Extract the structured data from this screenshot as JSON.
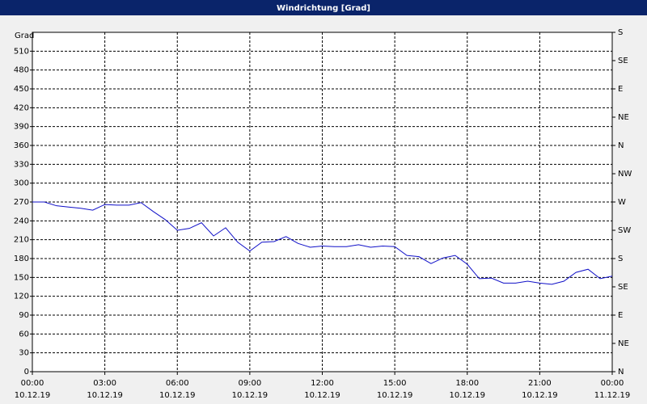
{
  "chart_data": {
    "type": "line",
    "title": "Windrichtung [Grad]",
    "ylabel": "Grad",
    "x": [
      0,
      0.5,
      1,
      1.5,
      2,
      2.5,
      3,
      3.5,
      4,
      4.5,
      5,
      5.5,
      6,
      6.5,
      7,
      7.5,
      8,
      8.5,
      9,
      9.5,
      10,
      10.5,
      11,
      11.5,
      12,
      12.5,
      13,
      13.5,
      14,
      14.5,
      15,
      15.5,
      16,
      16.5,
      17,
      17.5,
      18,
      18.5,
      19,
      19.5,
      20,
      20.5,
      21,
      21.5,
      22,
      22.5,
      23,
      23.5,
      24
    ],
    "series": [
      {
        "color": "#1010c8",
        "values": [
          270,
          270,
          264,
          262,
          260,
          257,
          266,
          265,
          265,
          269,
          255,
          242,
          225,
          228,
          237,
          216,
          229,
          206,
          192,
          206,
          207,
          215,
          204,
          198,
          200,
          199,
          199,
          202,
          198,
          200,
          199,
          185,
          183,
          172,
          181,
          185,
          171,
          148,
          149,
          141,
          141,
          144,
          141,
          139,
          144,
          158,
          163,
          148,
          152
        ]
      }
    ],
    "xlim": [
      0,
      24
    ],
    "xticks": [
      {
        "value": 0,
        "label": "00:00"
      },
      {
        "value": 3,
        "label": "03:00"
      },
      {
        "value": 6,
        "label": "06:00"
      },
      {
        "value": 9,
        "label": "09:00"
      },
      {
        "value": 12,
        "label": "12:00"
      },
      {
        "value": 15,
        "label": "15:00"
      },
      {
        "value": 18,
        "label": "18:00"
      },
      {
        "value": 21,
        "label": "21:00"
      },
      {
        "value": 24,
        "label": "00:00"
      }
    ],
    "xtick_dates": [
      "10.12.19",
      "10.12.19",
      "10.12.19",
      "10.12.19",
      "10.12.19",
      "10.12.19",
      "10.12.19",
      "10.12.19",
      "11.12.19"
    ],
    "ylim": [
      0,
      540
    ],
    "yticks": [
      0,
      30,
      60,
      90,
      120,
      150,
      180,
      210,
      240,
      270,
      300,
      330,
      360,
      390,
      420,
      450,
      480,
      510
    ],
    "y2lim": [
      0,
      540
    ],
    "y2ticks": [
      {
        "value": 0,
        "label": "N"
      },
      {
        "value": 45,
        "label": "NE"
      },
      {
        "value": 90,
        "label": "E"
      },
      {
        "value": 135,
        "label": "SE"
      },
      {
        "value": 180,
        "label": "S"
      },
      {
        "value": 225,
        "label": "SW"
      },
      {
        "value": 270,
        "label": "W"
      },
      {
        "value": 315,
        "label": "NW"
      },
      {
        "value": 360,
        "label": "N"
      },
      {
        "value": 405,
        "label": "NE"
      },
      {
        "value": 450,
        "label": "E"
      },
      {
        "value": 495,
        "label": "SE"
      },
      {
        "value": 540,
        "label": "S"
      }
    ],
    "grid": true
  }
}
